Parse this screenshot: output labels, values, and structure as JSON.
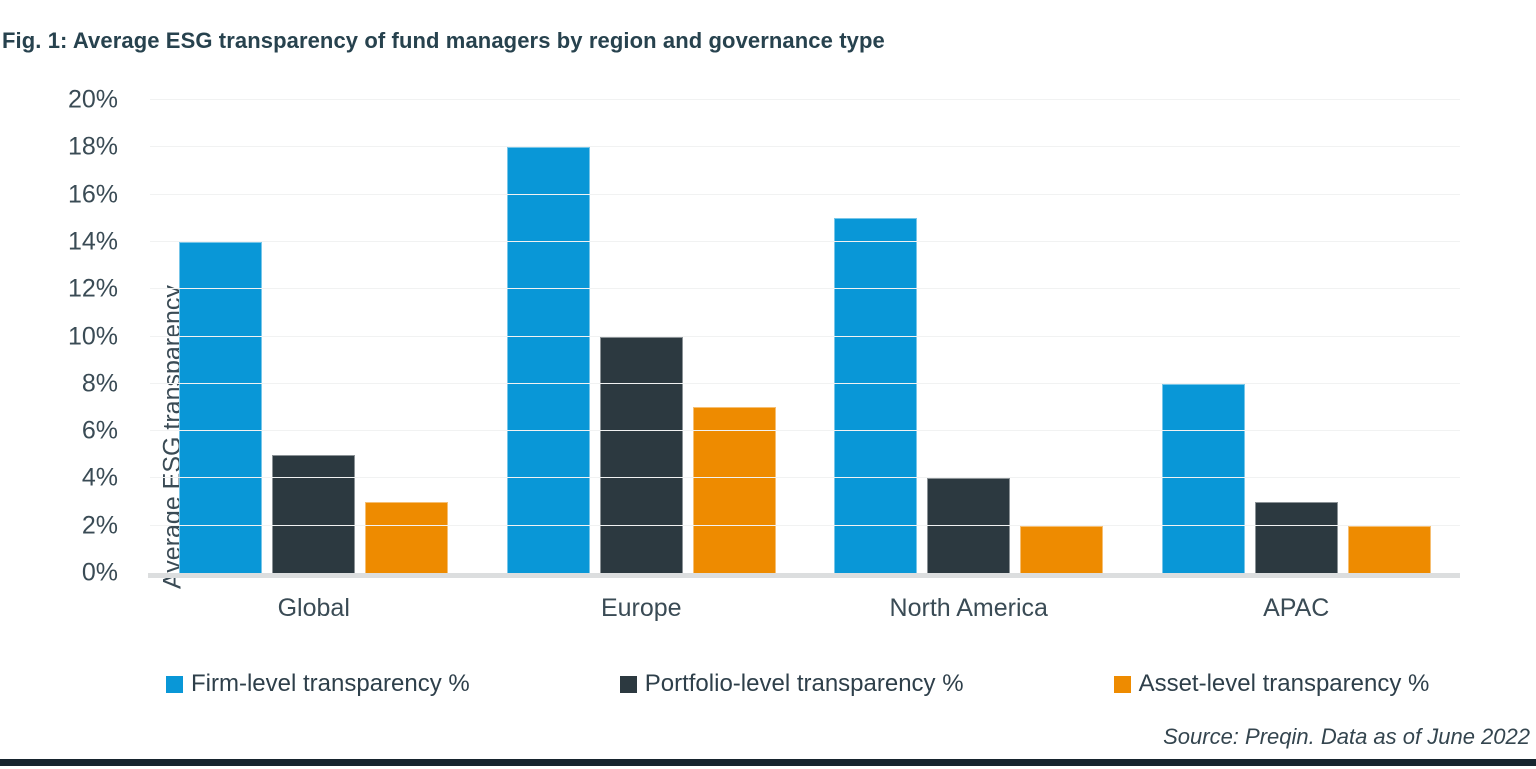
{
  "figure": {
    "title": "Fig. 1: Average ESG transparency of fund managers by region and governance type",
    "source_note": "Source: Preqin. Data as of June 2022"
  },
  "chart_data": {
    "type": "bar",
    "title": "Average ESG transparency of fund managers by region and governance type",
    "categories": [
      "Global",
      "Europe",
      "North America",
      "APAC"
    ],
    "series": [
      {
        "name": "Firm-level transparency %",
        "color": "#0997d7",
        "values": [
          14,
          18,
          15,
          8
        ]
      },
      {
        "name": "Portfolio-level transparency %",
        "color": "#2c3940",
        "values": [
          5,
          10,
          4,
          3
        ]
      },
      {
        "name": "Asset-level transparency %",
        "color": "#ee8b00",
        "values": [
          3,
          7,
          2,
          2
        ]
      }
    ],
    "xlabel": "",
    "ylabel": "Average ESG transparency",
    "ylim": [
      0,
      20
    ],
    "ytick_step": 2,
    "ytick_labels": [
      "0%",
      "2%",
      "4%",
      "6%",
      "8%",
      "10%",
      "12%",
      "14%",
      "16%",
      "18%",
      "20%"
    ],
    "grid": true,
    "legend_position": "bottom"
  },
  "colors": {
    "accent_bar": "#17242e",
    "gridline": "#f1f2f2",
    "baseline": "#dcdedf",
    "title_text": "#27424e",
    "axis_text": "#3a4b55"
  }
}
